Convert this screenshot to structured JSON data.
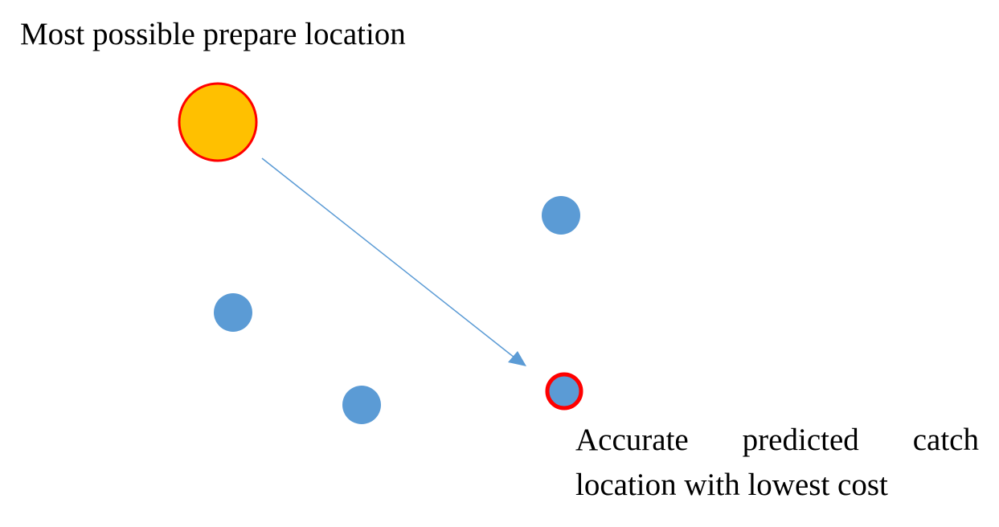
{
  "labels": {
    "prepare": "Most possible prepare location",
    "catch_line1": "Accurate predicted catch",
    "catch_line2": "location with lowest cost"
  },
  "colors": {
    "background": "#ffffff",
    "prepare_fill": "#ffc000",
    "outline": "#ff0000",
    "candidate_fill": "#5b9bd5",
    "arrow": "#5b9bd5",
    "text": "#000000"
  }
}
